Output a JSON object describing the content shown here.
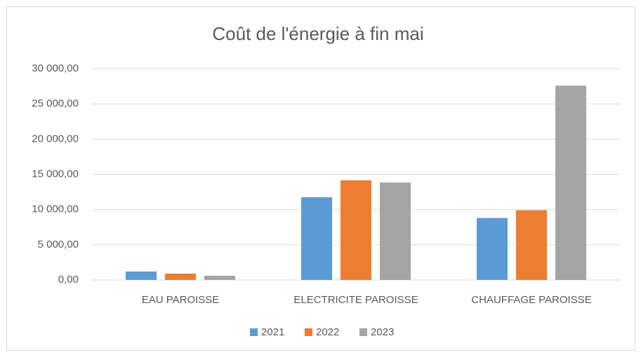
{
  "chart_data": {
    "type": "bar",
    "title": "Coût de l'énergie à fin mai",
    "categories": [
      "EAU PAROISSE",
      "ELECTRICITE PAROISSE",
      "CHAUFFAGE PAROISSE"
    ],
    "series": [
      {
        "name": "2021",
        "color": "#5b9bd5",
        "values": [
          1200,
          11750,
          8800
        ]
      },
      {
        "name": "2022",
        "color": "#ed7d31",
        "values": [
          900,
          14150,
          9900
        ]
      },
      {
        "name": "2023",
        "color": "#a5a5a5",
        "values": [
          600,
          13850,
          27600
        ]
      }
    ],
    "ylim": [
      0,
      30000
    ],
    "yticks": [
      {
        "value": 0,
        "label": "0,00"
      },
      {
        "value": 5000,
        "label": "5 000,00"
      },
      {
        "value": 10000,
        "label": "10 000,00"
      },
      {
        "value": 15000,
        "label": "15 000,00"
      },
      {
        "value": 20000,
        "label": "20 000,00"
      },
      {
        "value": 25000,
        "label": "25 000,00"
      },
      {
        "value": 30000,
        "label": "30 000,00"
      }
    ],
    "grid": true,
    "legend": "bottom"
  }
}
